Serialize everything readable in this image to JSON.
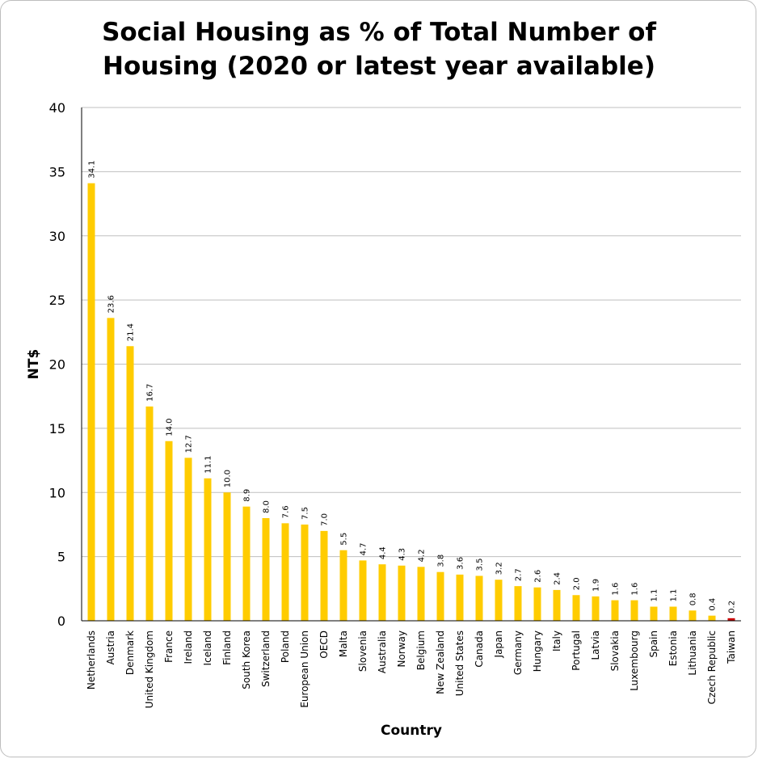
{
  "chart_data": {
    "type": "bar",
    "title": "Social Housing as % of Total Number of\nHousing (2020 or latest year available)",
    "xlabel": "Country",
    "ylabel": "NT$",
    "ylim": [
      0,
      40
    ],
    "yticks": [
      0,
      5,
      10,
      15,
      20,
      25,
      30,
      35,
      40
    ],
    "grid": true,
    "categories": [
      "Netherlands",
      "Austria",
      "Denmark",
      "United Kingdom",
      "France",
      "Ireland",
      "Iceland",
      "Finland",
      "South Korea",
      "Switzerland",
      "Poland",
      "European Union",
      "OECD",
      "Malta",
      "Slovenia",
      "Australia",
      "Norway",
      "Belgium",
      "New Zealand",
      "United States",
      "Canada",
      "Japan",
      "Germany",
      "Hungary",
      "Italy",
      "Portugal",
      "Latvia",
      "Slovakia",
      "Luxembourg",
      "Spain",
      "Estonia",
      "Lithuania",
      "Czech Republic",
      "Taiwan"
    ],
    "values": [
      34.1,
      23.6,
      21.4,
      16.7,
      14.0,
      12.7,
      11.1,
      10.0,
      8.9,
      8.0,
      7.6,
      7.5,
      7.0,
      5.5,
      4.7,
      4.4,
      4.3,
      4.2,
      3.8,
      3.6,
      3.5,
      3.2,
      2.7,
      2.6,
      2.4,
      2.0,
      1.9,
      1.6,
      1.6,
      1.1,
      1.1,
      0.8,
      0.4,
      0.2
    ],
    "data_labels": [
      "34.1",
      "23.6",
      "21.4",
      "16.7",
      "14.0",
      "12.7",
      "11.1",
      "10.0",
      "8.9",
      "8.0",
      "7.6",
      "7.5",
      "7.0",
      "5.5",
      "4.7",
      "4.4",
      "4.3",
      "4.2",
      "3.8",
      "3.6",
      "3.5",
      "3.2",
      "2.7",
      "2.6",
      "2.4",
      "2.0",
      "1.9",
      "1.6",
      "1.6",
      "1.1",
      "1.1",
      "0.8",
      "0.4",
      "0.2"
    ],
    "colors": {
      "bar": "#FFCC00",
      "highlight_bar": "#CC0000",
      "highlight_category": "Taiwan",
      "grid": "#bfbfbf",
      "axis": "#000000"
    }
  }
}
